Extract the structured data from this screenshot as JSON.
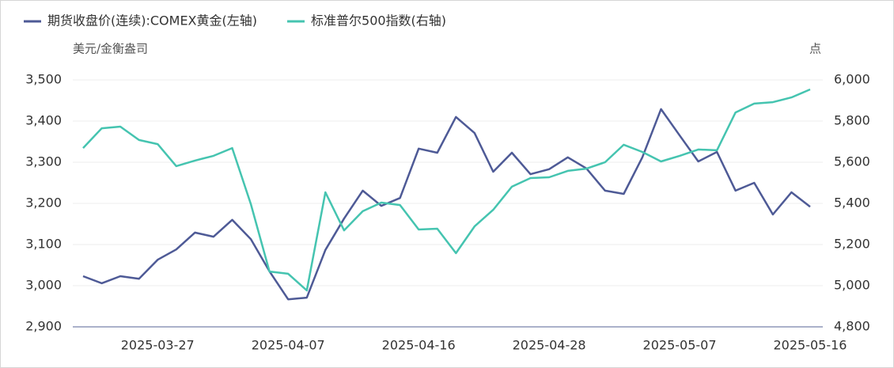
{
  "chart_data": {
    "type": "line",
    "legend_position": "top-left",
    "y_unit": "美元/金衡盎司",
    "y2_unit": "点",
    "grid": true,
    "categories": [
      null,
      null,
      null,
      null,
      "2025-03-27",
      null,
      null,
      null,
      null,
      null,
      null,
      "2025-04-07",
      null,
      null,
      null,
      null,
      null,
      null,
      "2025-04-16",
      null,
      null,
      null,
      null,
      null,
      null,
      "2025-04-28",
      null,
      null,
      null,
      null,
      null,
      null,
      "2025-05-07",
      null,
      null,
      null,
      null,
      null,
      null,
      "2025-05-16"
    ],
    "series": [
      {
        "name": "期货收盘价(连续):COMEX黄金(左轴)",
        "color": "#4e5a96",
        "values": [
          3023,
          3006,
          3023,
          3017,
          3063,
          3088,
          3129,
          3119,
          3160,
          3113,
          3035,
          2967,
          2971,
          3087,
          3163,
          3231,
          3194,
          3213,
          3333,
          3323,
          3410,
          3371,
          3277,
          3323,
          3271,
          3283,
          3312,
          3285,
          3231,
          3223,
          3312,
          3429,
          3365,
          3302,
          3325,
          3231,
          3250,
          3173,
          3227,
          3192
        ]
      },
      {
        "name": "标准普尔500指数(右轴)",
        "color": "#45c4b0",
        "axis": "y2",
        "values": [
          5669,
          5765,
          5773,
          5708,
          5688,
          5581,
          5608,
          5631,
          5669,
          5396,
          5069,
          5058,
          4977,
          5454,
          5269,
          5362,
          5404,
          5392,
          5273,
          5277,
          5158,
          5288,
          5369,
          5481,
          5523,
          5527,
          5558,
          5569,
          5600,
          5685,
          5650,
          5604,
          5631,
          5662,
          5658,
          5842,
          5885,
          5892,
          5915,
          5954
        ]
      }
    ],
    "ylim": [
      2900,
      3500
    ],
    "yticks": [
      {
        "value": 2900,
        "label": "2,900"
      },
      {
        "value": 3000,
        "label": "3,000"
      },
      {
        "value": 3100,
        "label": "3,100"
      },
      {
        "value": 3200,
        "label": "3,200"
      },
      {
        "value": 3300,
        "label": "3,300"
      },
      {
        "value": 3400,
        "label": "3,400"
      },
      {
        "value": 3500,
        "label": "3,500"
      }
    ],
    "y2lim": [
      4800,
      6000
    ],
    "y2ticks": [
      {
        "value": 4800,
        "label": "4,800"
      },
      {
        "value": 5000,
        "label": "5,000"
      },
      {
        "value": 5200,
        "label": "5,200"
      },
      {
        "value": 5400,
        "label": "5,400"
      },
      {
        "value": 5600,
        "label": "5,600"
      },
      {
        "value": 5800,
        "label": "5,800"
      },
      {
        "value": 6000,
        "label": "6,000"
      }
    ]
  }
}
